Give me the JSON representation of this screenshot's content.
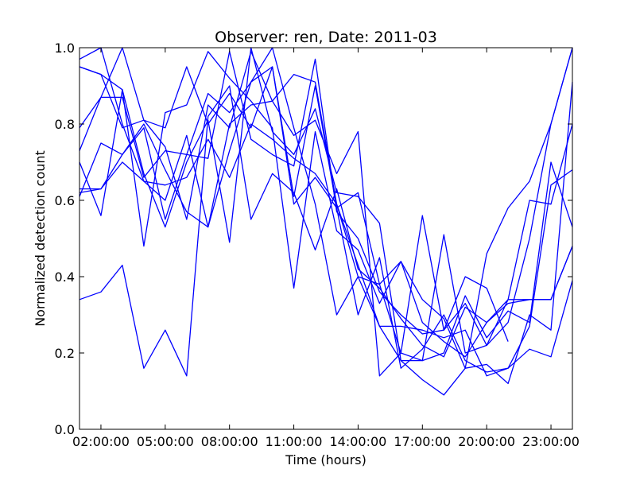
{
  "chart_data": {
    "type": "line",
    "title": "Observer: ren, Date: 2011-03",
    "xlabel": "Time (hours)",
    "ylabel": "Normalized detection count",
    "xlim": [
      "01:00:00",
      "24:00:00"
    ],
    "ylim": [
      0,
      1.0
    ],
    "x_ticks": [
      {
        "x": "02:00:00",
        "label": "02:00:00"
      },
      {
        "x": "05:00:00",
        "label": "05:00:00"
      },
      {
        "x": "08:00:00",
        "label": "08:00:00"
      },
      {
        "x": "11:00:00",
        "label": "11:00:00"
      },
      {
        "x": "14:00:00",
        "label": "14:00:00"
      },
      {
        "x": "17:00:00",
        "label": "17:00:00"
      },
      {
        "x": "20:00:00",
        "label": "20:00:00"
      },
      {
        "x": "23:00:00",
        "label": "23:00:00"
      }
    ],
    "y_ticks": [
      {
        "y": 0.0,
        "label": "0.0"
      },
      {
        "y": 0.2,
        "label": "0.2"
      },
      {
        "y": 0.4,
        "label": "0.4"
      },
      {
        "y": 0.6,
        "label": "0.6"
      },
      {
        "y": 0.8,
        "label": "0.8"
      },
      {
        "y": 1.0,
        "label": "1.0"
      }
    ],
    "x": [
      "01:00:00",
      "02:00:00",
      "03:00:00",
      "04:00:00",
      "05:00:00",
      "06:00:00",
      "07:00:00",
      "08:00:00",
      "09:00:00",
      "10:00:00",
      "11:00:00",
      "12:00:00",
      "13:00:00",
      "14:00:00",
      "15:00:00",
      "16:00:00",
      "17:00:00",
      "18:00:00",
      "19:00:00",
      "20:00:00",
      "21:00:00",
      "22:00:00",
      "23:00:00",
      "24:00:00"
    ],
    "grid": false,
    "line_color": "#0000ff",
    "series": [
      {
        "values": [
          0.95,
          0.93,
          0.79,
          0.81,
          0.79,
          0.95,
          0.8,
          0.88,
          0.79,
          0.95,
          0.61,
          0.9,
          0.58,
          0.62,
          0.38,
          0.44,
          0.28,
          0.23,
          0.19,
          0.28,
          0.33,
          0.34,
          0.34,
          0.48
        ]
      },
      {
        "values": [
          0.97,
          1.0,
          0.8,
          0.65,
          0.64,
          0.66,
          0.76,
          0.66,
          0.8,
          0.76,
          0.71,
          0.67,
          0.59,
          0.4,
          0.38,
          0.2,
          0.18,
          0.2,
          0.35,
          0.24,
          0.31,
          0.28,
          0.7,
          0.53
        ]
      },
      {
        "values": [
          0.73,
          0.87,
          0.87,
          0.66,
          0.73,
          0.72,
          0.71,
          0.99,
          0.76,
          0.72,
          0.69,
          0.97,
          0.57,
          0.5,
          0.36,
          0.3,
          0.25,
          0.26,
          0.4,
          0.37,
          0.23,
          null,
          null,
          null
        ]
      },
      {
        "values": [
          0.34,
          0.36,
          0.43,
          0.16,
          0.26,
          0.14,
          0.82,
          0.9,
          0.55,
          0.67,
          0.62,
          0.47,
          0.63,
          0.42,
          0.37,
          0.29,
          0.22,
          0.19,
          0.32,
          0.28,
          0.34,
          0.34,
          0.34,
          0.48
        ]
      },
      {
        "values": [
          0.79,
          0.87,
          1.0,
          0.81,
          0.74,
          0.55,
          0.85,
          0.79,
          0.99,
          0.86,
          0.77,
          0.81,
          0.67,
          0.78,
          0.14,
          0.2,
          0.56,
          0.26,
          0.33,
          0.22,
          0.28,
          0.5,
          0.8,
          1.0
        ]
      },
      {
        "values": [
          0.61,
          0.75,
          0.72,
          0.8,
          0.68,
          0.57,
          0.53,
          0.73,
          0.91,
          1.0,
          0.79,
          0.59,
          0.3,
          0.4,
          0.27,
          0.18,
          0.18,
          0.51,
          0.2,
          0.22,
          0.34,
          0.6,
          0.59,
          0.8
        ]
      },
      {
        "values": [
          0.7,
          0.56,
          0.89,
          0.48,
          0.83,
          0.85,
          0.99,
          0.92,
          0.86,
          0.79,
          0.37,
          0.78,
          0.52,
          0.47,
          0.33,
          0.44,
          0.34,
          0.29,
          0.16,
          0.46,
          0.58,
          0.65,
          0.8,
          1.0
        ]
      },
      {
        "values": [
          0.95,
          0.93,
          0.89,
          0.67,
          0.53,
          0.7,
          0.81,
          0.49,
          1.0,
          0.78,
          0.72,
          0.84,
          0.62,
          0.61,
          0.54,
          0.18,
          0.13,
          0.09,
          0.16,
          0.17,
          0.12,
          0.3,
          0.26,
          0.91
        ]
      },
      {
        "values": [
          0.62,
          0.63,
          0.72,
          0.79,
          0.55,
          0.72,
          0.88,
          0.83,
          0.91,
          0.95,
          0.59,
          0.66,
          0.58,
          0.3,
          0.45,
          0.16,
          0.21,
          0.3,
          0.18,
          0.15,
          0.16,
          0.21,
          0.19,
          0.39
        ]
      },
      {
        "values": [
          0.63,
          0.63,
          0.7,
          0.65,
          0.6,
          0.77,
          0.53,
          0.8,
          0.85,
          0.86,
          0.93,
          0.91,
          0.59,
          0.43,
          0.27,
          0.27,
          0.26,
          0.24,
          0.26,
          0.14,
          0.16,
          0.27,
          0.64,
          0.68
        ]
      }
    ]
  }
}
